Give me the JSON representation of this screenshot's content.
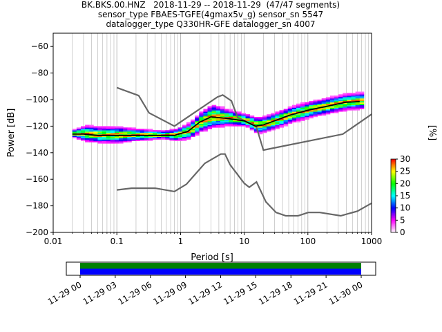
{
  "chart_data": {
    "type": "heatmap",
    "title_lines": [
      "BK.BKS.00.HNZ   2018-11-29 -- 2018-11-29  (47/47 segments)",
      "sensor_type FBAES-TGFE(4gmax5v_g) sensor_sn 5547",
      "datalogger_type Q330HR-GFE datalogger_sn 4007"
    ],
    "xlabel": "Period [s]",
    "ylabel": "Power [dB]",
    "x_scale": "log",
    "xlim": [
      0.01,
      1000
    ],
    "ylim": [
      -200,
      -50
    ],
    "x_ticks": [
      {
        "value": 0.01,
        "label": "0.01"
      },
      {
        "value": 0.1,
        "label": "0.1"
      },
      {
        "value": 1,
        "label": "1"
      },
      {
        "value": 10,
        "label": "10"
      },
      {
        "value": 100,
        "label": "100"
      },
      {
        "value": 1000,
        "label": "1000"
      }
    ],
    "y_ticks": [
      {
        "value": -60,
        "label": "−60"
      },
      {
        "value": -80,
        "label": "−80"
      },
      {
        "value": -100,
        "label": "−100"
      },
      {
        "value": -120,
        "label": "−120"
      },
      {
        "value": -140,
        "label": "−140"
      },
      {
        "value": -160,
        "label": "−160"
      },
      {
        "value": -180,
        "label": "−180"
      },
      {
        "value": -200,
        "label": "−200"
      }
    ],
    "grid": "vertical-log",
    "noise_models": [
      {
        "points": [
          [
            0.1,
            -91
          ],
          [
            0.22,
            -97
          ],
          [
            0.32,
            -110
          ],
          [
            0.8,
            -120
          ],
          [
            3.8,
            -98
          ],
          [
            4.6,
            -96.5
          ],
          [
            6.3,
            -101
          ],
          [
            7.9,
            -113.5
          ],
          [
            15.4,
            -120
          ],
          [
            20,
            -138
          ],
          [
            354,
            -126
          ],
          [
            1000,
            -111
          ]
        ]
      },
      {
        "points": [
          [
            0.1,
            -168
          ],
          [
            0.17,
            -166.7
          ],
          [
            0.4,
            -166.7
          ],
          [
            0.8,
            -169.2
          ],
          [
            1.24,
            -163.7
          ],
          [
            2.4,
            -148
          ],
          [
            4.3,
            -141
          ],
          [
            5,
            -141
          ],
          [
            6,
            -149
          ],
          [
            10,
            -163
          ],
          [
            12,
            -166
          ],
          [
            15.6,
            -162
          ],
          [
            21.9,
            -177
          ],
          [
            31.6,
            -185
          ],
          [
            45,
            -187.5
          ],
          [
            70,
            -187.5
          ],
          [
            101,
            -185
          ],
          [
            154,
            -185
          ],
          [
            328,
            -187.5
          ],
          [
            600,
            -184
          ],
          [
            1000,
            -178
          ]
        ]
      }
    ],
    "mean_curve": [
      [
        0.02,
        -126
      ],
      [
        0.03,
        -126
      ],
      [
        0.05,
        -127
      ],
      [
        0.1,
        -127
      ],
      [
        0.2,
        -127
      ],
      [
        0.5,
        -127
      ],
      [
        0.8,
        -127
      ],
      [
        1.3,
        -124
      ],
      [
        2,
        -117
      ],
      [
        3,
        -113
      ],
      [
        5,
        -114
      ],
      [
        10,
        -116
      ],
      [
        15,
        -120
      ],
      [
        20,
        -119
      ],
      [
        30,
        -116
      ],
      [
        50,
        -112
      ],
      [
        100,
        -108
      ],
      [
        200,
        -105
      ],
      [
        400,
        -102
      ],
      [
        650,
        -101.5
      ]
    ],
    "psd_spread": [
      [
        0.02,
        1
      ],
      [
        0.03,
        3
      ],
      [
        0.05,
        3
      ],
      [
        0.1,
        3
      ],
      [
        0.2,
        2
      ],
      [
        0.5,
        1
      ],
      [
        0.8,
        2
      ],
      [
        1.3,
        3
      ],
      [
        2,
        4
      ],
      [
        3,
        5
      ],
      [
        5,
        3
      ],
      [
        10,
        2
      ],
      [
        15,
        3
      ],
      [
        20,
        3
      ],
      [
        30,
        3
      ],
      [
        50,
        3
      ],
      [
        100,
        3
      ],
      [
        200,
        3
      ],
      [
        400,
        3
      ],
      [
        650,
        3
      ]
    ],
    "colorbar": {
      "label": "[%]",
      "min": 0,
      "max": 30,
      "ticks": [
        "0",
        "5",
        "10",
        "15",
        "20",
        "25",
        "30"
      ],
      "colors": [
        "#ffffff",
        "#ff00ff",
        "#0000ff",
        "#00ffff",
        "#00ff00",
        "#ffff00",
        "#ff0000"
      ]
    },
    "timeline": {
      "tick_labels": [
        "11-29 00",
        "11-29 03",
        "11-29 06",
        "11-29 09",
        "11-29 12",
        "11-29 15",
        "11-29 18",
        "11-29 21",
        "11-30 00"
      ],
      "upper_bar_color": "#008000",
      "lower_bar_color": "#0000ff",
      "coverage": [
        0.0,
        1.0
      ]
    }
  }
}
